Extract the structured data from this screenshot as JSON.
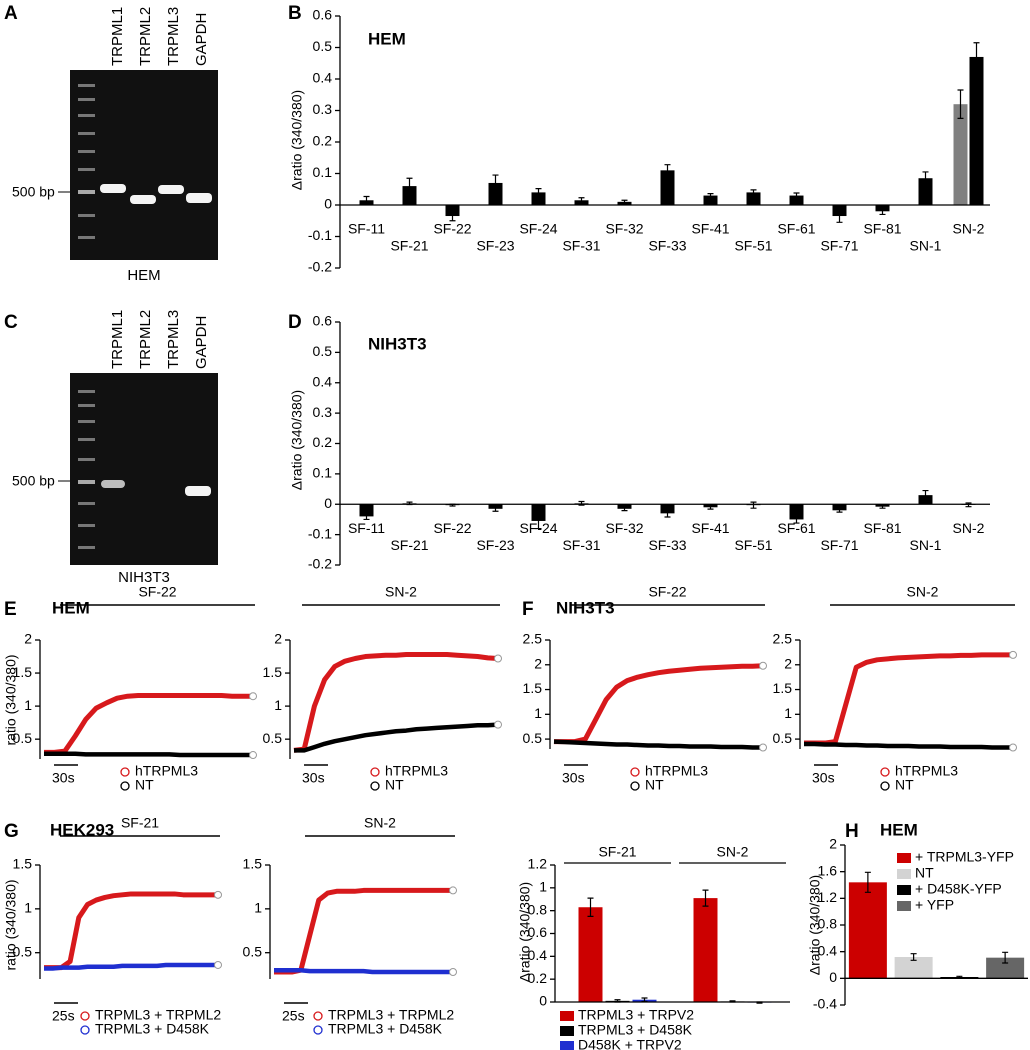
{
  "panel_labels": [
    "A",
    "B",
    "C",
    "D",
    "E",
    "F",
    "G",
    "H"
  ],
  "gels": [
    {
      "lanes": [
        "TRPML1",
        "TRPML2",
        "TRPML3",
        "GAPDH"
      ],
      "marker": "500 bp",
      "caption": "HEM"
    },
    {
      "lanes": [
        "TRPML1",
        "TRPML2",
        "TRPML3",
        "GAPDH"
      ],
      "marker": "500 bp",
      "caption": "NIH3T3"
    }
  ],
  "chart_data": [
    {
      "type": "bar",
      "title": "HEM",
      "y_label": "Δratio (340/380)",
      "categories": [
        "SF-11",
        "SF-21",
        "SF-22",
        "SF-23",
        "SF-24",
        "SF-31",
        "SF-32",
        "SF-33",
        "SF-41",
        "SF-51",
        "SF-61",
        "SF-71",
        "SF-81",
        "SN-1",
        "SN-2"
      ],
      "series": [
        {
          "color": "#808080",
          "values": [
            null,
            null,
            null,
            null,
            null,
            null,
            null,
            null,
            null,
            null,
            null,
            null,
            null,
            null,
            0.32
          ],
          "errors": [
            null,
            null,
            null,
            null,
            null,
            null,
            null,
            null,
            null,
            null,
            null,
            null,
            null,
            null,
            0.045
          ]
        },
        {
          "color": "#000000",
          "values": [
            0.015,
            0.06,
            -0.035,
            0.07,
            0.04,
            0.015,
            0.01,
            0.11,
            0.03,
            0.04,
            0.03,
            -0.035,
            -0.02,
            0.085,
            0.47
          ],
          "errors": [
            0.012,
            0.025,
            0.015,
            0.025,
            0.012,
            0.008,
            0.005,
            0.018,
            0.006,
            0.008,
            0.008,
            0.02,
            0.01,
            0.02,
            0.045
          ]
        }
      ],
      "ylim": [
        -0.2,
        0.6
      ],
      "yticks": [
        -0.2,
        -0.1,
        0,
        0.1,
        0.2,
        0.3,
        0.4,
        0.5,
        0.6
      ]
    },
    {
      "type": "bar",
      "title": "NIH3T3",
      "y_label": "Δratio (340/380)",
      "categories": [
        "SF-11",
        "SF-21",
        "SF-22",
        "SF-23",
        "SF-24",
        "SF-31",
        "SF-32",
        "SF-33",
        "SF-41",
        "SF-51",
        "SF-61",
        "SF-71",
        "SF-81",
        "SN-1",
        "SN-2"
      ],
      "series": [
        {
          "color": "#000000",
          "values": [
            -0.04,
            0.003,
            -0.003,
            -0.015,
            -0.055,
            0.003,
            -0.015,
            -0.03,
            -0.01,
            -0.003,
            -0.05,
            -0.02,
            -0.008,
            0.03,
            -0.002
          ],
          "errors": [
            0.01,
            0.004,
            0.003,
            0.008,
            0.025,
            0.006,
            0.006,
            0.012,
            0.006,
            0.01,
            0.012,
            0.006,
            0.005,
            0.015,
            0.006
          ]
        }
      ],
      "ylim": [
        -0.2,
        0.6
      ],
      "yticks": [
        -0.2,
        -0.1,
        0,
        0.1,
        0.2,
        0.3,
        0.4,
        0.5,
        0.6
      ]
    },
    {
      "type": "line",
      "title": "HEM",
      "y_label": "ratio (340/380)",
      "stimulus": "SF-22",
      "scale_bar": "30s",
      "series": [
        {
          "name": "hTRPML3",
          "color": "#d7191c",
          "values": [
            0.3,
            0.3,
            0.32,
            0.55,
            0.8,
            0.97,
            1.05,
            1.12,
            1.15,
            1.16,
            1.16,
            1.16,
            1.16,
            1.16,
            1.16,
            1.16,
            1.16,
            1.16,
            1.15,
            1.15,
            1.15
          ]
        },
        {
          "name": "NT",
          "color": "#000000",
          "values": [
            0.28,
            0.28,
            0.28,
            0.28,
            0.27,
            0.27,
            0.27,
            0.27,
            0.27,
            0.27,
            0.27,
            0.27,
            0.27,
            0.26,
            0.26,
            0.26,
            0.26,
            0.26,
            0.26,
            0.26,
            0.26
          ]
        }
      ],
      "ylim": [
        0.2,
        2
      ],
      "yticks": [
        0.5,
        1,
        1.5,
        2
      ]
    },
    {
      "type": "line",
      "stimulus": "SN-2",
      "scale_bar": "30s",
      "series": [
        {
          "name": "hTRPML3",
          "color": "#d7191c",
          "values": [
            0.33,
            0.35,
            1.0,
            1.4,
            1.6,
            1.68,
            1.72,
            1.75,
            1.76,
            1.77,
            1.77,
            1.78,
            1.78,
            1.78,
            1.78,
            1.78,
            1.77,
            1.76,
            1.75,
            1.73,
            1.72
          ]
        },
        {
          "name": "NT",
          "color": "#000000",
          "values": [
            0.33,
            0.33,
            0.38,
            0.43,
            0.47,
            0.5,
            0.53,
            0.56,
            0.58,
            0.6,
            0.62,
            0.63,
            0.65,
            0.66,
            0.67,
            0.68,
            0.69,
            0.7,
            0.71,
            0.71,
            0.72
          ]
        }
      ],
      "ylim": [
        0.2,
        2
      ],
      "yticks": [
        0.5,
        1,
        1.5,
        2
      ]
    },
    {
      "type": "line",
      "title": "NIH3T3",
      "stimulus": "SF-22",
      "scale_bar": "30s",
      "series": [
        {
          "name": "hTRPML3",
          "color": "#d7191c",
          "values": [
            0.45,
            0.45,
            0.45,
            0.5,
            0.9,
            1.3,
            1.55,
            1.68,
            1.75,
            1.8,
            1.84,
            1.87,
            1.89,
            1.91,
            1.93,
            1.94,
            1.95,
            1.96,
            1.97,
            1.97,
            1.98
          ]
        },
        {
          "name": "NT",
          "color": "#000000",
          "values": [
            0.45,
            0.44,
            0.43,
            0.42,
            0.41,
            0.4,
            0.39,
            0.39,
            0.38,
            0.37,
            0.37,
            0.36,
            0.36,
            0.35,
            0.35,
            0.35,
            0.34,
            0.34,
            0.34,
            0.33,
            0.33
          ]
        }
      ],
      "ylim": [
        0.3,
        2.5
      ],
      "yticks": [
        0.5,
        1,
        1.5,
        2,
        2.5
      ]
    },
    {
      "type": "line",
      "stimulus": "SN-2",
      "scale_bar": "30s",
      "series": [
        {
          "name": "hTRPML3",
          "color": "#d7191c",
          "values": [
            0.42,
            0.42,
            0.42,
            0.45,
            1.2,
            1.95,
            2.05,
            2.1,
            2.12,
            2.14,
            2.15,
            2.16,
            2.17,
            2.18,
            2.18,
            2.19,
            2.19,
            2.2,
            2.2,
            2.2,
            2.2
          ]
        },
        {
          "name": "NT",
          "color": "#000000",
          "values": [
            0.4,
            0.4,
            0.39,
            0.39,
            0.38,
            0.38,
            0.37,
            0.37,
            0.36,
            0.36,
            0.36,
            0.35,
            0.35,
            0.35,
            0.34,
            0.34,
            0.34,
            0.34,
            0.33,
            0.33,
            0.33
          ]
        }
      ],
      "ylim": [
        0.3,
        2.5
      ],
      "yticks": [
        0.5,
        1,
        1.5,
        2,
        2.5
      ]
    },
    {
      "type": "line",
      "title": "HEK293",
      "y_label": "ratio (340/380)",
      "stimulus": "SF-21",
      "scale_bar": "25s",
      "series": [
        {
          "name": "TRPML3 + TRPML2",
          "color": "#d7191c",
          "values": [
            0.33,
            0.33,
            0.33,
            0.4,
            0.9,
            1.05,
            1.1,
            1.13,
            1.15,
            1.16,
            1.17,
            1.17,
            1.17,
            1.17,
            1.17,
            1.17,
            1.16,
            1.16,
            1.16,
            1.16,
            1.16
          ]
        },
        {
          "name": "TRPML3 + D458K",
          "color": "#1f2fd0",
          "values": [
            0.32,
            0.32,
            0.33,
            0.33,
            0.33,
            0.34,
            0.34,
            0.34,
            0.34,
            0.35,
            0.35,
            0.35,
            0.35,
            0.35,
            0.36,
            0.36,
            0.36,
            0.36,
            0.36,
            0.36,
            0.36
          ]
        }
      ],
      "ylim": [
        0.2,
        1.5
      ],
      "yticks": [
        0.5,
        1,
        1.5
      ]
    },
    {
      "type": "line",
      "stimulus": "SN-2",
      "scale_bar": "25s",
      "series": [
        {
          "name": "TRPML3 + TRPML2",
          "color": "#d7191c",
          "values": [
            0.28,
            0.28,
            0.28,
            0.3,
            0.7,
            1.1,
            1.18,
            1.2,
            1.2,
            1.2,
            1.21,
            1.21,
            1.21,
            1.21,
            1.21,
            1.21,
            1.21,
            1.21,
            1.21,
            1.21,
            1.21
          ]
        },
        {
          "name": "TRPML3 + D458K",
          "color": "#1f2fd0",
          "values": [
            0.3,
            0.3,
            0.3,
            0.3,
            0.29,
            0.29,
            0.29,
            0.29,
            0.29,
            0.29,
            0.29,
            0.28,
            0.28,
            0.28,
            0.28,
            0.28,
            0.28,
            0.28,
            0.28,
            0.28,
            0.28
          ]
        }
      ],
      "ylim": [
        0.2,
        1.5
      ],
      "yticks": [
        0.5,
        1,
        1.5
      ]
    },
    {
      "type": "bar",
      "y_label": "Δratio (340/380)",
      "categories": [
        "SF-21",
        "SN-2"
      ],
      "series": [
        {
          "name": "TRPML3 + TRPV2",
          "color": "#cc0000",
          "values": [
            0.83,
            0.91
          ],
          "errors": [
            0.08,
            0.07
          ]
        },
        {
          "name": "TRPML3 + D458K",
          "color": "#000000",
          "values": [
            0.01,
            0.005
          ],
          "errors": [
            0.01,
            0.005
          ]
        },
        {
          "name": "D458K + TRPV2",
          "color": "#1f2fd0",
          "values": [
            0.02,
            -0.005
          ],
          "errors": [
            0.015,
            0.005
          ]
        }
      ],
      "ylim": [
        0,
        1.2
      ],
      "yticks": [
        0,
        0.2,
        0.4,
        0.6,
        0.8,
        1,
        1.2
      ]
    },
    {
      "type": "bar",
      "title": "HEM",
      "y_label": "Δratio (340/380)",
      "series": [
        {
          "name": "+ TRPML3-YFP",
          "color": "#cc0000",
          "values": [
            1.44
          ],
          "errors": [
            0.15
          ]
        },
        {
          "name": "NT",
          "color": "#d3d3d3",
          "values": [
            0.32
          ],
          "errors": [
            0.05
          ]
        },
        {
          "name": "+ D458K-YFP",
          "color": "#000000",
          "values": [
            0.02
          ],
          "errors": [
            0.01
          ]
        },
        {
          "name": "+ YFP",
          "color": "#666666",
          "values": [
            0.31
          ],
          "errors": [
            0.08
          ]
        }
      ],
      "ylim": [
        -0.4,
        2
      ],
      "yticks": [
        -0.4,
        0,
        0.4,
        0.8,
        1.2,
        1.6,
        2
      ]
    }
  ]
}
